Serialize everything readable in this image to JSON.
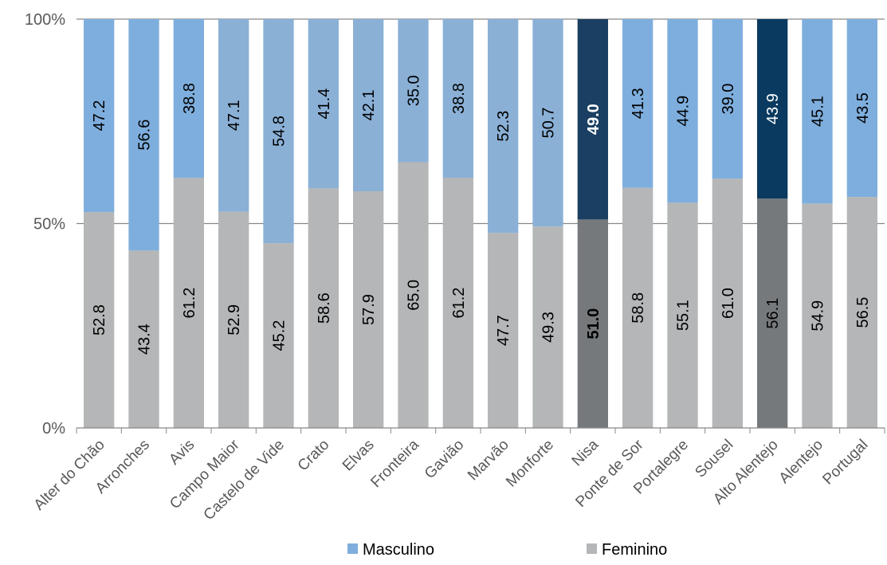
{
  "chart_data": {
    "type": "bar",
    "stacked": true,
    "percent_stacked": true,
    "categories": [
      "Alter do Chão",
      "Arronches",
      "Avis",
      "Campo Maior",
      "Castelo de Vide",
      "Crato",
      "Elvas",
      "Fronteira",
      "Gavião",
      "Marvão",
      "Monforte",
      "Nisa",
      "Ponte de Sor",
      "Portalegre",
      "Sousel",
      "Alto Alentejo",
      "Alentejo",
      "Portugal"
    ],
    "series": [
      {
        "name": "Feminino",
        "values": [
          52.8,
          43.4,
          61.2,
          52.9,
          45.2,
          58.6,
          57.9,
          65.0,
          61.2,
          47.7,
          49.3,
          51.0,
          58.8,
          55.1,
          61.0,
          56.1,
          54.9,
          56.5
        ],
        "labels": [
          "52.8",
          "43.4",
          "61.2",
          "52.9",
          "45.2",
          "58.6",
          "57.9",
          "65.0",
          "61.2",
          "47.7",
          "49.3",
          "51.0",
          "58.8",
          "55.1",
          "61.0",
          "56.1",
          "54.9",
          "56.5"
        ],
        "color": "#B4B6B7",
        "highlight_colors": {
          "Nisa": "#76797C",
          "Alto Alentejo": "#76797C"
        }
      },
      {
        "name": "Masculino",
        "values": [
          47.2,
          56.6,
          38.8,
          47.1,
          54.8,
          41.4,
          42.1,
          35.0,
          38.8,
          52.3,
          50.7,
          49.0,
          41.3,
          44.9,
          39.0,
          43.9,
          45.1,
          43.5
        ],
        "labels": [
          "47.2",
          "56.6",
          "38.8",
          "47.1",
          "54.8",
          "41.4",
          "42.1",
          "35.0",
          "38.8",
          "52.3",
          "50.7",
          "49.0",
          "41.3",
          "44.9",
          "39.0",
          "43.9",
          "45.1",
          "43.5"
        ],
        "color": "#7EAEDD",
        "alt_color": "#8AB0D6",
        "highlight_colors": {
          "Nisa": "#1B3F62",
          "Alto Alentejo": "#0A3A5F"
        }
      }
    ],
    "bold_categories": [
      "Nisa"
    ],
    "y_ticks": [
      "0%",
      "50%",
      "100%"
    ],
    "ylim": [
      0,
      100
    ],
    "grid": true,
    "legend_position": "bottom",
    "legend": [
      {
        "label": "Masculino",
        "color": "#7EAEDD"
      },
      {
        "label": "Feminino",
        "color": "#B4B6B7"
      }
    ]
  }
}
